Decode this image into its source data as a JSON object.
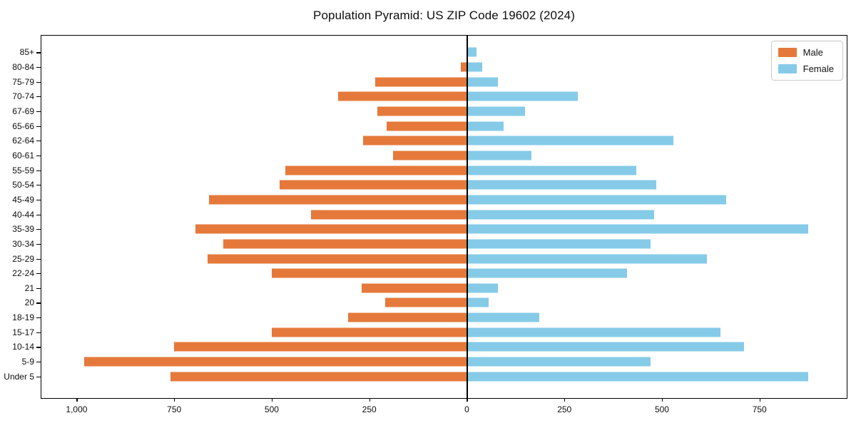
{
  "chart_data": {
    "type": "bar",
    "subtype": "population-pyramid",
    "title": "Population Pyramid: US ZIP Code 19602 (2024)",
    "xlabel": "",
    "ylabel": "",
    "grid": false,
    "legend_position": "upper right",
    "categories": [
      "85+",
      "80-84",
      "75-79",
      "70-74",
      "67-69",
      "65-66",
      "62-64",
      "60-61",
      "55-59",
      "50-54",
      "45-49",
      "40-44",
      "35-39",
      "30-34",
      "25-29",
      "22-24",
      "21",
      "20",
      "18-19",
      "15-17",
      "10-14",
      "5-9",
      "Under 5"
    ],
    "series": [
      {
        "name": "Male",
        "side": "left",
        "values": [
          0,
          15,
          235,
          330,
          230,
          205,
          265,
          190,
          465,
          480,
          660,
          400,
          695,
          625,
          665,
          500,
          270,
          210,
          305,
          500,
          750,
          980,
          760
        ]
      },
      {
        "name": "Female",
        "side": "right",
        "values": [
          25,
          40,
          80,
          285,
          150,
          95,
          530,
          165,
          435,
          485,
          665,
          480,
          875,
          470,
          615,
          410,
          80,
          55,
          185,
          650,
          710,
          470,
          875
        ]
      }
    ],
    "x_ticks": [
      {
        "label": "1,000",
        "value": 1000,
        "side": "left"
      },
      {
        "label": "750",
        "value": 750,
        "side": "left"
      },
      {
        "label": "500",
        "value": 500,
        "side": "left"
      },
      {
        "label": "250",
        "value": 250,
        "side": "left"
      },
      {
        "label": "0",
        "value": 0,
        "side": "center"
      },
      {
        "label": "250",
        "value": 250,
        "side": "right"
      },
      {
        "label": "500",
        "value": 500,
        "side": "right"
      },
      {
        "label": "750",
        "value": 750,
        "side": "right"
      }
    ],
    "xlim": [
      -1090,
      975
    ]
  },
  "legend": {
    "male": "Male",
    "female": "Female"
  },
  "colors": {
    "male": "#E5793B",
    "female": "#85CBE8",
    "axis": "#000000"
  }
}
